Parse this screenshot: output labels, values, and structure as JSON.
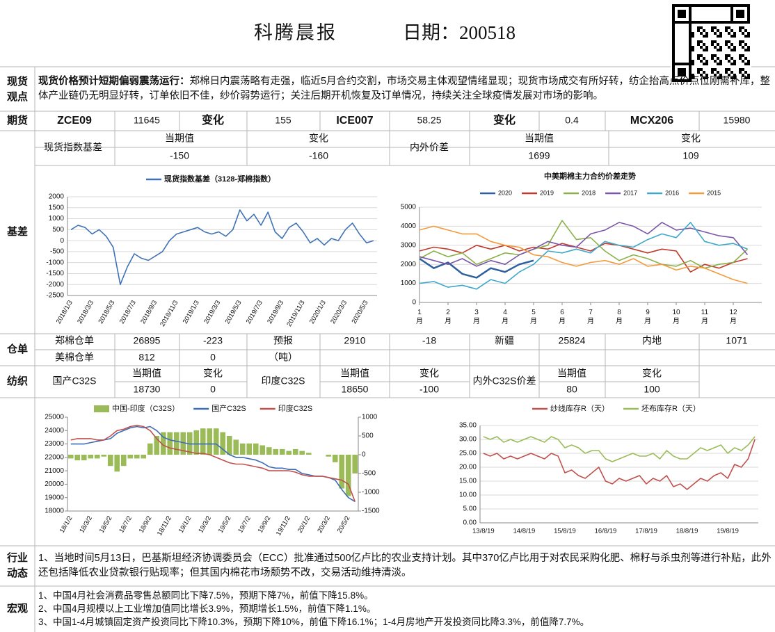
{
  "header": {
    "title": "科腾晨报",
    "date": "日期：200518"
  },
  "spot": {
    "label": [
      "现货",
      "观点"
    ],
    "lead": "现货价格预计短期偏弱震荡运行：",
    "text": "郑棉日内震荡略有走强，临近5月合约交割，市场交易主体观望情绪显现；现货市场成交有所好转，纺企抬高点价点位刚需补库，整体产业链仍无明显好转，订单依旧不佳，纱价弱势运行；关注后期开机恢复及订单情况，持续关注全球疫情发展对市场的影响。"
  },
  "futures": {
    "label": "期货",
    "cells": [
      "ZCE09",
      "11645",
      "变化",
      "155",
      "ICE007",
      "58.25",
      "变化",
      "0.4",
      "MCX206",
      "15980"
    ]
  },
  "basis": {
    "label": "基差",
    "cells": [
      "现货指数基差",
      "当期值",
      "变化",
      "内外价差",
      "当期值",
      "变化",
      "-150",
      "-160",
      "1699",
      "109"
    ]
  },
  "warehouse": {
    "label": "仓单",
    "cells": [
      "郑棉仓单",
      "26895",
      "-223",
      "预报",
      "2910",
      "-18",
      "新疆",
      "25824",
      "内地",
      "1071",
      "美棉仓单",
      "812",
      "0",
      "（吨）"
    ]
  },
  "textile": {
    "label": "纺织",
    "cells": [
      "国产C32S",
      "当期值",
      "变化",
      "印度C32S",
      "当期值",
      "变化",
      "内外C32S价差",
      "当期值",
      "变化",
      "18730",
      "0",
      "18650",
      "-100",
      "80",
      "100"
    ]
  },
  "industry": {
    "label": [
      "行业",
      "动态"
    ],
    "text": "1、当地时间5月13日，巴基斯坦经济协调委员会（ECC）批准通过500亿卢比的农业支持计划。其中370亿卢比用于对农民采购化肥、棉籽与杀虫剂等进行补贴，此外还包括降低农业贷款银行贴现率；但其国内棉花市场颓势不改，交易活动维持清淡。"
  },
  "macro": {
    "label": "宏观",
    "items": [
      "1、中国4月社会消费品零售总额同比下降7.5%，预期下降7%，前值下降15.8%。",
      "2、中国4月规模以上工业增加值同比增长3.9%，预期增长1.5%，前值下降1.1%。",
      "3、中国1-4月城镇固定资产投资同比下降10.3%，预期下降10%，前值下降16.1%；1-4月房地产开发投资同比降3.3%，前值降7.7%。"
    ]
  },
  "chart_data": [
    {
      "type": "line",
      "grid": true,
      "categories": [
        "2018/1/3",
        null,
        null,
        "2018/3/3",
        null,
        null,
        "2018/5/3",
        null,
        null,
        "2018/7/3",
        null,
        null,
        "2018/9/3",
        null,
        null,
        "2018/11/3",
        null,
        null,
        "2019/1/3",
        null,
        null,
        "2019/3/3",
        null,
        null,
        "2019/5/3",
        null,
        null,
        "2019/7/3",
        null,
        null,
        "2019/9/3",
        null,
        null,
        "2019/11/3",
        null,
        null,
        "2020/1/3",
        null,
        null,
        "2020/3/3",
        null,
        null,
        "2020/5/3",
        null
      ],
      "series": [
        {
          "name": "现货指数基差（3128-郑棉指数）",
          "color": "#3f72b5",
          "values": [
            500,
            700,
            600,
            300,
            500,
            200,
            -300,
            -2000,
            -1200,
            -600,
            -800,
            -900,
            -700,
            -500,
            0,
            300,
            400,
            500,
            600,
            400,
            300,
            400,
            200,
            500,
            1400,
            900,
            1200,
            700,
            1300,
            400,
            100,
            600,
            800,
            400,
            -100,
            100,
            -200,
            100,
            0,
            500,
            800,
            300,
            -100,
            0
          ]
        }
      ],
      "ylim": [
        -2500,
        2000
      ],
      "yticks": [
        -2500,
        -2000,
        -1500,
        -1000,
        -500,
        0,
        500,
        1000,
        1500,
        2000
      ]
    },
    {
      "type": "line",
      "grid": true,
      "title": "中美期棉主力合约价差走势",
      "x": [
        1,
        1.5,
        2,
        2.5,
        3,
        3.5,
        4,
        4.5,
        5,
        5.5,
        6,
        6.5,
        7,
        7.5,
        8,
        8.5,
        9,
        9.5,
        10,
        10.5,
        11,
        11.5,
        12,
        12.5
      ],
      "series": [
        {
          "name": "2020",
          "color": "#2e5f9e",
          "values": [
            2300,
            1800,
            2100,
            1500,
            1300,
            1800,
            1600,
            2000,
            2200,
            null,
            null,
            null,
            null,
            null,
            null,
            null,
            null,
            null,
            null,
            null,
            null,
            null,
            null,
            null
          ]
        },
        {
          "name": "2019",
          "color": "#c0392b",
          "values": [
            2700,
            2900,
            2800,
            2600,
            3000,
            2800,
            3000,
            2700,
            2900,
            2800,
            3100,
            2900,
            2700,
            3100,
            3000,
            2800,
            2600,
            2800,
            2700,
            1600,
            2000,
            1800,
            2100,
            2300
          ]
        },
        {
          "name": "2018",
          "color": "#8cb04a",
          "values": [
            2300,
            2700,
            2400,
            2600,
            2000,
            2300,
            2600,
            2500,
            2800,
            3000,
            4300,
            3300,
            3400,
            2700,
            2200,
            2500,
            2300,
            2000,
            1900,
            2200,
            1800,
            2000,
            2100,
            2800
          ]
        },
        {
          "name": "2017",
          "color": "#7a55a8",
          "values": [
            2400,
            2200,
            2000,
            2300,
            1900,
            2200,
            2000,
            2500,
            2800,
            3200,
            3000,
            2900,
            3600,
            3800,
            4200,
            4000,
            3600,
            4200,
            3800,
            3900,
            3700,
            3500,
            3400,
            2500
          ]
        },
        {
          "name": "2016",
          "color": "#3fa8c8",
          "values": [
            1000,
            1100,
            800,
            900,
            700,
            1200,
            1000,
            1600,
            2000,
            2700,
            2600,
            2800,
            2600,
            3200,
            3000,
            2900,
            3300,
            3600,
            3400,
            4200,
            3200,
            3000,
            3100,
            2800
          ]
        },
        {
          "name": "2015",
          "color": "#f39a3c",
          "values": [
            3800,
            4000,
            3800,
            3600,
            3600,
            3200,
            3000,
            2900,
            2500,
            2400,
            2100,
            1900,
            2100,
            2200,
            2000,
            2300,
            1900,
            2000,
            1700,
            1900,
            1800,
            1500,
            1200,
            1000
          ]
        }
      ],
      "xlim": [
        1,
        13
      ],
      "xticks": [
        {
          "value": 1,
          "label": "1月"
        },
        {
          "value": 2,
          "label": "2月"
        },
        {
          "value": 3,
          "label": "3月"
        },
        {
          "value": 4,
          "label": "4月"
        },
        {
          "value": 5,
          "label": "5月"
        },
        {
          "value": 6,
          "label": "6月"
        },
        {
          "value": 7,
          "label": "7月"
        },
        {
          "value": 8,
          "label": "8月"
        },
        {
          "value": 9,
          "label": "9月"
        },
        {
          "value": 10,
          "label": "10月"
        },
        {
          "value": 11,
          "label": "11月"
        },
        {
          "value": 12,
          "label": "12月"
        }
      ],
      "ylim": [
        0,
        5000
      ],
      "yticks": [
        0,
        1000,
        2000,
        3000,
        4000,
        5000
      ]
    },
    {
      "type": "combo",
      "grid": false,
      "categories": [
        "18/1/2",
        null,
        null,
        "18/3/2",
        null,
        null,
        "18/5/2",
        null,
        null,
        "18/7/2",
        null,
        null,
        "18/9/2",
        null,
        null,
        "18/11/2",
        null,
        null,
        "19/1/2",
        null,
        null,
        "19/3/2",
        null,
        null,
        "19/5/2",
        null,
        null,
        "19/7/2",
        null,
        null,
        "19/9/2",
        null,
        null,
        "19/11/2",
        null,
        null,
        "20/1/2",
        null,
        null,
        "20/3/2",
        null,
        null,
        "20/5/2",
        null
      ],
      "series": [
        {
          "name": "中国-印度（C32S）",
          "type": "bar",
          "axis": "y2",
          "color": "#9bbb59",
          "values": [
            -100,
            -150,
            -150,
            -100,
            -100,
            -50,
            -300,
            -450,
            -300,
            -100,
            -100,
            -100,
            300,
            500,
            600,
            600,
            600,
            600,
            600,
            650,
            700,
            700,
            700,
            600,
            500,
            400,
            300,
            300,
            300,
            250,
            200,
            150,
            150,
            100,
            150,
            100,
            50,
            0,
            0,
            -50,
            -200,
            -900,
            -1100,
            -500
          ]
        },
        {
          "name": "国产C32S",
          "type": "line",
          "color": "#3d6db5",
          "values": [
            23000,
            23000,
            23000,
            23100,
            23200,
            23300,
            23400,
            23800,
            24000,
            24200,
            24300,
            24200,
            24300,
            24000,
            23500,
            23300,
            23200,
            23100,
            23000,
            23000,
            23000,
            23000,
            23000,
            22600,
            22200,
            22000,
            22000,
            21900,
            21800,
            21600,
            21300,
            21200,
            21200,
            21100,
            21100,
            20800,
            20700,
            20600,
            20600,
            20500,
            20300,
            19600,
            19000,
            18700
          ]
        },
        {
          "name": "印度C32S",
          "type": "line",
          "color": "#c0504d",
          "values": [
            23300,
            23400,
            23400,
            23400,
            23300,
            23300,
            23600,
            24000,
            24100,
            24300,
            24400,
            24300,
            24000,
            23400,
            22900,
            22700,
            22600,
            22500,
            22400,
            22300,
            22300,
            22200,
            22000,
            21800,
            21600,
            21500,
            21500,
            21400,
            21300,
            21200,
            21000,
            21000,
            21000,
            21000,
            20900,
            20700,
            20600,
            20600,
            20600,
            20500,
            20400,
            20300,
            20000,
            18700
          ]
        }
      ],
      "ylim": [
        18000,
        25000
      ],
      "yticks": [
        18000,
        19000,
        20000,
        21000,
        22000,
        23000,
        24000,
        25000
      ],
      "y2lim": [
        -1500,
        1000
      ],
      "y2ticks": [
        -1500,
        -1000,
        -500,
        0,
        500,
        1000
      ]
    },
    {
      "type": "line",
      "grid": true,
      "categories": [
        "13/8/19",
        null,
        null,
        null,
        null,
        null,
        "14/8/19",
        null,
        null,
        null,
        null,
        null,
        "15/8/19",
        null,
        null,
        null,
        null,
        null,
        "16/8/19",
        null,
        null,
        null,
        null,
        null,
        "17/8/19",
        null,
        null,
        null,
        null,
        null,
        "18/8/19",
        null,
        null,
        null,
        null,
        null,
        "19/8/19",
        null,
        null,
        null,
        null
      ],
      "series": [
        {
          "name": "纱线库存R（天）",
          "color": "#c0504d",
          "values": [
            25,
            24,
            25,
            23,
            24,
            23,
            24,
            25,
            24,
            23,
            25,
            24,
            18,
            19,
            17,
            16,
            18,
            20,
            15,
            14,
            16,
            15,
            16,
            17,
            14,
            16,
            15,
            17,
            13,
            14,
            12,
            14,
            16,
            15,
            17,
            18,
            16,
            21,
            20,
            23,
            30
          ]
        },
        {
          "name": "坯布库存R（天）",
          "color": "#9bbb59",
          "values": [
            31,
            30,
            31,
            29,
            30,
            29,
            30,
            31,
            30,
            29,
            31,
            30,
            27,
            28,
            27,
            25,
            26,
            26,
            23,
            22,
            23,
            24,
            25,
            24,
            24,
            25,
            23,
            26,
            24,
            23,
            23,
            25,
            27,
            26,
            27,
            28,
            25,
            27,
            26,
            28,
            31
          ]
        }
      ],
      "ylim": [
        0,
        35
      ],
      "yticks": [
        {
          "value": 0,
          "label": "0.00"
        },
        {
          "value": 5,
          "label": "5.00"
        },
        {
          "value": 10,
          "label": "10.00"
        },
        {
          "value": 15,
          "label": "15.00"
        },
        {
          "value": 20,
          "label": "20.00"
        },
        {
          "value": 25,
          "label": "25.00"
        },
        {
          "value": 30,
          "label": "30.00"
        },
        {
          "value": 35,
          "label": "35.00"
        }
      ]
    }
  ]
}
